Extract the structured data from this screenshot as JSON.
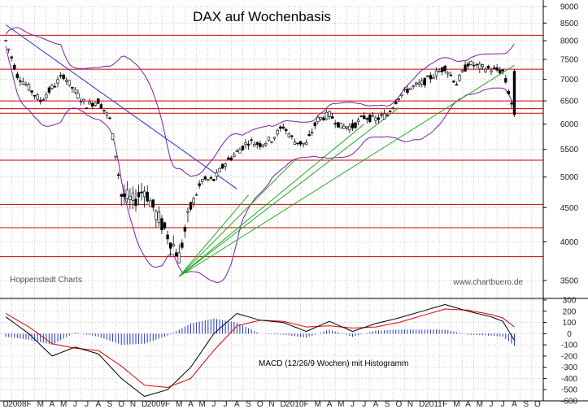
{
  "chart_data": [
    {
      "type": "candlestick",
      "title": "DAX auf Wochenbasis",
      "source_note": "Hoppenstedt Charts",
      "watermark": "www.chartbuero.de",
      "y_scale": "log",
      "ylim": [
        3300,
        9000
      ],
      "yticks": [
        3500,
        4000,
        4500,
        5000,
        5500,
        6000,
        6500,
        7000,
        7500,
        8000,
        8500,
        9000
      ],
      "x_month_labels": [
        "D",
        "2008",
        "F",
        "M",
        "A",
        "M",
        "J",
        "J",
        "A",
        "S",
        "O",
        "N",
        "D",
        "2009",
        "F",
        "M",
        "A",
        "M",
        "J",
        "J",
        "A",
        "S",
        "O",
        "N",
        "D",
        "2010",
        "F",
        "M",
        "A",
        "M",
        "J",
        "J",
        "A",
        "S",
        "O",
        "N",
        "D",
        "2011",
        "F",
        "M",
        "A",
        "M",
        "J",
        "J",
        "A",
        "S",
        "O"
      ],
      "x_start": "2007-12",
      "horizontal_levels": [
        8150,
        7250,
        6500,
        6330,
        6230,
        5300,
        4550,
        4200,
        3800
      ],
      "trendlines": [
        {
          "color": "#2233cc",
          "from": [
            "2007-12",
            8450
          ],
          "to": [
            "2009-08",
            4800
          ]
        },
        {
          "color": "#22aa22",
          "from": [
            "2009-03",
            3550
          ],
          "to": [
            "2011-08",
            7350
          ]
        },
        {
          "color": "#22aa22",
          "from": [
            "2009-03",
            3550
          ],
          "to": [
            "2010-10",
            6350
          ]
        },
        {
          "color": "#22aa22",
          "from": [
            "2009-03",
            3550
          ],
          "to": [
            "2010-07",
            6000
          ]
        },
        {
          "color": "#22aa22",
          "from": [
            "2009-03",
            3550
          ],
          "to": [
            "2010-01",
            5300
          ]
        },
        {
          "color": "#22aa22",
          "from": [
            "2009-03",
            3550
          ],
          "to": [
            "2009-09",
            4700
          ]
        }
      ],
      "price_path": [
        [
          "2007-12",
          8000
        ],
        [
          "2008-01",
          7100
        ],
        [
          "2008-02",
          6800
        ],
        [
          "2008-03",
          6500
        ],
        [
          "2008-04",
          6800
        ],
        [
          "2008-05",
          7100
        ],
        [
          "2008-06",
          6700
        ],
        [
          "2008-07",
          6400
        ],
        [
          "2008-08",
          6500
        ],
        [
          "2008-09",
          6100
        ],
        [
          "2008-10",
          4700
        ],
        [
          "2008-11",
          4600
        ],
        [
          "2008-12",
          4800
        ],
        [
          "2009-01",
          4400
        ],
        [
          "2009-02",
          4100
        ],
        [
          "2009-03",
          3800
        ],
        [
          "2009-04",
          4500
        ],
        [
          "2009-05",
          4950
        ],
        [
          "2009-06",
          4950
        ],
        [
          "2009-07",
          5250
        ],
        [
          "2009-08",
          5450
        ],
        [
          "2009-09",
          5650
        ],
        [
          "2009-10",
          5600
        ],
        [
          "2009-11",
          5700
        ],
        [
          "2009-12",
          5950
        ],
        [
          "2010-01",
          5650
        ],
        [
          "2010-02",
          5600
        ],
        [
          "2010-03",
          6100
        ],
        [
          "2010-04",
          6200
        ],
        [
          "2010-05",
          5950
        ],
        [
          "2010-06",
          5950
        ],
        [
          "2010-07",
          6150
        ],
        [
          "2010-08",
          6100
        ],
        [
          "2010-09",
          6200
        ],
        [
          "2010-10",
          6600
        ],
        [
          "2010-11",
          6800
        ],
        [
          "2010-12",
          6900
        ],
        [
          "2011-01",
          7100
        ],
        [
          "2011-02",
          7300
        ],
        [
          "2011-03",
          6900
        ],
        [
          "2011-04",
          7400
        ],
        [
          "2011-05",
          7300
        ],
        [
          "2011-06",
          7250
        ],
        [
          "2011-07",
          7200
        ],
        [
          "2011-08",
          6200
        ]
      ]
    },
    {
      "type": "macd",
      "label": "MACD (12/26/9 Wochen) mit Histogramm",
      "ylim": [
        -600,
        300
      ],
      "yticks": [
        300,
        200,
        100,
        0,
        -100,
        -200,
        -300,
        -400,
        -500,
        -600
      ],
      "macd": [
        [
          "2007-12",
          150
        ],
        [
          "2008-02",
          0
        ],
        [
          "2008-04",
          -200
        ],
        [
          "2008-06",
          -120
        ],
        [
          "2008-08",
          -180
        ],
        [
          "2008-10",
          -400
        ],
        [
          "2008-12",
          -560
        ],
        [
          "2009-02",
          -500
        ],
        [
          "2009-04",
          -300
        ],
        [
          "2009-06",
          0
        ],
        [
          "2009-08",
          180
        ],
        [
          "2009-10",
          120
        ],
        [
          "2009-12",
          100
        ],
        [
          "2010-02",
          20
        ],
        [
          "2010-04",
          110
        ],
        [
          "2010-06",
          20
        ],
        [
          "2010-08",
          90
        ],
        [
          "2010-10",
          140
        ],
        [
          "2010-12",
          200
        ],
        [
          "2011-02",
          260
        ],
        [
          "2011-04",
          200
        ],
        [
          "2011-06",
          150
        ],
        [
          "2011-07",
          110
        ],
        [
          "2011-08",
          -60
        ]
      ],
      "signal": [
        [
          "2007-12",
          180
        ],
        [
          "2008-02",
          60
        ],
        [
          "2008-04",
          -90
        ],
        [
          "2008-06",
          -130
        ],
        [
          "2008-08",
          -150
        ],
        [
          "2008-10",
          -290
        ],
        [
          "2008-12",
          -460
        ],
        [
          "2009-02",
          -480
        ],
        [
          "2009-04",
          -400
        ],
        [
          "2009-06",
          -150
        ],
        [
          "2009-08",
          70
        ],
        [
          "2009-10",
          120
        ],
        [
          "2009-12",
          110
        ],
        [
          "2010-02",
          60
        ],
        [
          "2010-04",
          70
        ],
        [
          "2010-06",
          50
        ],
        [
          "2010-08",
          60
        ],
        [
          "2010-10",
          100
        ],
        [
          "2010-12",
          160
        ],
        [
          "2011-02",
          220
        ],
        [
          "2011-04",
          210
        ],
        [
          "2011-06",
          170
        ],
        [
          "2011-07",
          140
        ],
        [
          "2011-08",
          60
        ]
      ]
    }
  ],
  "colors": {
    "candle": "#000000",
    "bollinger": "#7a1fa2",
    "level": "#cc0000",
    "macd_line": "#000000",
    "signal_line": "#dd0000",
    "histogram": "#2233cc",
    "grid": "#999999"
  }
}
